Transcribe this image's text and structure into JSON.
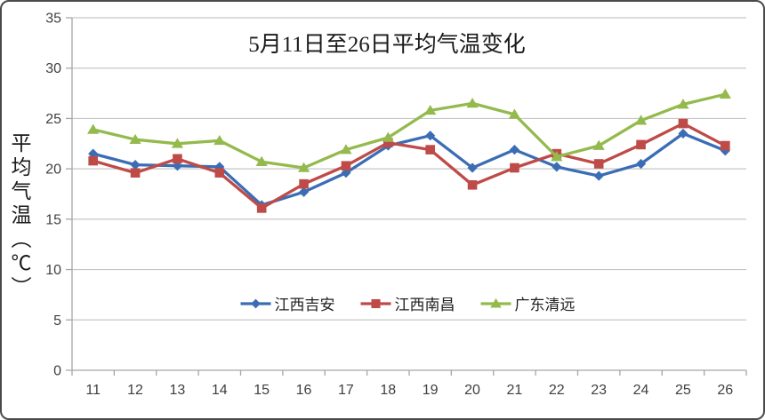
{
  "chart_data": {
    "type": "line",
    "title": "5月11日至26日平均气温变化",
    "ylabel": "平均气温（℃）",
    "xlabel": "",
    "categories": [
      "11",
      "12",
      "13",
      "14",
      "15",
      "16",
      "17",
      "18",
      "19",
      "20",
      "21",
      "22",
      "23",
      "24",
      "25",
      "26"
    ],
    "series": [
      {
        "name": "江西吉安",
        "marker": "diamond",
        "color": "#3B6DB5",
        "values": [
          21.5,
          20.4,
          20.3,
          20.2,
          16.4,
          17.7,
          19.6,
          22.3,
          23.3,
          20.1,
          21.9,
          20.2,
          19.3,
          20.5,
          23.5,
          21.8
        ]
      },
      {
        "name": "江西南昌",
        "marker": "square",
        "color": "#BE4B48",
        "values": [
          20.8,
          19.6,
          21.0,
          19.6,
          16.1,
          18.5,
          20.3,
          22.6,
          21.9,
          18.4,
          20.1,
          21.5,
          20.5,
          22.4,
          24.5,
          22.3
        ]
      },
      {
        "name": "广东清远",
        "marker": "triangle",
        "color": "#94BA4D",
        "values": [
          23.9,
          22.9,
          22.5,
          22.8,
          20.7,
          20.1,
          21.9,
          23.1,
          25.8,
          26.5,
          25.4,
          21.2,
          22.3,
          24.8,
          26.4,
          27.4
        ]
      }
    ],
    "ylim": [
      0,
      35
    ],
    "y_ticks": [
      0,
      5,
      10,
      15,
      20,
      25,
      30,
      35
    ],
    "grid": true,
    "legend_position": "bottom-center-inside",
    "axis_color": "#A6A6A6",
    "grid_color": "#C6C6C6"
  }
}
